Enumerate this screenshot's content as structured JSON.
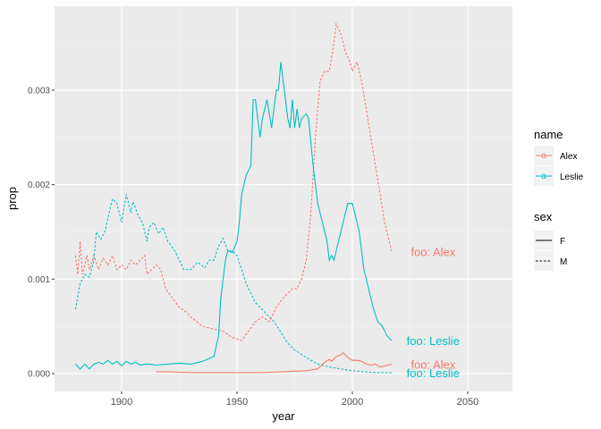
{
  "chart_data": {
    "type": "line",
    "title": "",
    "xlabel": "year",
    "ylabel": "prop",
    "xlim": [
      1873,
      2070
    ],
    "ylim": [
      -0.00015,
      0.00393
    ],
    "x_ticks": [
      1900,
      1950,
      2000,
      2050
    ],
    "x_tick_labels": [
      "1900",
      "1950",
      "2000",
      "2050"
    ],
    "y_ticks": [
      0.0,
      0.001,
      0.002,
      0.003
    ],
    "y_tick_labels": [
      "0.000",
      "0.001",
      "0.002",
      "0.003"
    ],
    "grid": true,
    "legend_position": "right",
    "legends": [
      {
        "title": "name",
        "entries": [
          {
            "label": "Alex",
            "color": "#F8766D"
          },
          {
            "label": "Leslie",
            "color": "#00BFC4"
          }
        ]
      },
      {
        "title": "sex",
        "entries": [
          {
            "label": "F",
            "linetype": "solid"
          },
          {
            "label": "M",
            "linetype": "dashed"
          }
        ]
      }
    ],
    "series": [
      {
        "name": "Leslie",
        "sex": "M",
        "color": "#00BFC4",
        "linetype": "dashed",
        "x": [
          1880,
          1882,
          1884,
          1886,
          1888,
          1889,
          1891,
          1893,
          1895,
          1896,
          1898,
          1900,
          1902,
          1904,
          1905,
          1907,
          1909,
          1911,
          1912,
          1914,
          1916,
          1918,
          1920,
          1923,
          1925,
          1927,
          1930,
          1933,
          1936,
          1938,
          1940,
          1942,
          1944,
          1946,
          1948,
          1950,
          1952,
          1954,
          1956,
          1958,
          1960,
          1962,
          1964,
          1966,
          1968,
          1970,
          1972,
          1975,
          1980,
          1985,
          1990,
          1995,
          2000,
          2005,
          2010,
          2017
        ],
        "y": [
          0.00068,
          0.00095,
          0.00105,
          0.00102,
          0.0012,
          0.0015,
          0.00142,
          0.00152,
          0.00175,
          0.00185,
          0.0018,
          0.0016,
          0.0019,
          0.0017,
          0.00182,
          0.00168,
          0.0016,
          0.0014,
          0.00155,
          0.0016,
          0.00148,
          0.00155,
          0.0014,
          0.0013,
          0.0012,
          0.0011,
          0.0011,
          0.00118,
          0.00112,
          0.0012,
          0.0012,
          0.00135,
          0.00143,
          0.0013,
          0.0013,
          0.00125,
          0.0011,
          0.00095,
          0.00085,
          0.00075,
          0.0007,
          0.00065,
          0.0006,
          0.00055,
          0.00048,
          0.0004,
          0.00032,
          0.00025,
          0.00017,
          0.0001,
          7e-05,
          5e-05,
          3e-05,
          2e-05,
          1e-05,
          1e-05
        ]
      },
      {
        "name": "Alex",
        "sex": "M",
        "color": "#F8766D",
        "linetype": "dashed",
        "x": [
          1880,
          1881,
          1882,
          1883,
          1885,
          1886,
          1888,
          1890,
          1892,
          1894,
          1896,
          1898,
          1900,
          1902,
          1904,
          1906,
          1908,
          1910,
          1911,
          1913,
          1915,
          1917,
          1919,
          1922,
          1925,
          1928,
          1930,
          1935,
          1940,
          1944,
          1948,
          1952,
          1955,
          1958,
          1961,
          1964,
          1967,
          1970,
          1974,
          1976,
          1978,
          1980,
          1982,
          1984,
          1986,
          1988,
          1990,
          1992,
          1993,
          1995,
          1997,
          1999,
          2000,
          2002,
          2004,
          2006,
          2008,
          2010,
          2012,
          2014,
          2016,
          2017
        ],
        "y": [
          0.00125,
          0.00105,
          0.0014,
          0.00105,
          0.00125,
          0.0011,
          0.00125,
          0.0011,
          0.00122,
          0.00115,
          0.00125,
          0.0011,
          0.00115,
          0.0011,
          0.0012,
          0.00115,
          0.0012,
          0.00125,
          0.00105,
          0.0011,
          0.00115,
          0.0011,
          0.0009,
          0.0008,
          0.0007,
          0.00065,
          0.0006,
          0.0005,
          0.00047,
          0.00045,
          0.00038,
          0.00035,
          0.00045,
          0.00055,
          0.0006,
          0.00055,
          0.0007,
          0.0008,
          0.0009,
          0.0009,
          0.001,
          0.0012,
          0.0017,
          0.0025,
          0.0031,
          0.0032,
          0.0032,
          0.0035,
          0.0037,
          0.0036,
          0.0034,
          0.0033,
          0.0032,
          0.0033,
          0.0031,
          0.0028,
          0.0025,
          0.0022,
          0.0019,
          0.0016,
          0.0014,
          0.0013
        ]
      },
      {
        "name": "Leslie",
        "sex": "F",
        "color": "#00BFC4",
        "linetype": "solid",
        "x": [
          1880,
          1882,
          1884,
          1886,
          1888,
          1890,
          1892,
          1894,
          1896,
          1898,
          1900,
          1902,
          1904,
          1906,
          1908,
          1910,
          1912,
          1915,
          1920,
          1925,
          1930,
          1935,
          1938,
          1940,
          1942,
          1943,
          1945,
          1946,
          1948,
          1950,
          1951,
          1952,
          1954,
          1956,
          1957,
          1958,
          1960,
          1961,
          1963,
          1965,
          1967,
          1968,
          1969,
          1970,
          1972,
          1973,
          1974,
          1975,
          1976,
          1977,
          1978,
          1980,
          1981,
          1983,
          1985,
          1987,
          1989,
          1990,
          1991,
          1992,
          1994,
          1996,
          1998,
          2000,
          2001,
          2003,
          2005,
          2007,
          2009,
          2011,
          2013,
          2015,
          2017
        ],
        "y": [
          0.0001,
          5e-05,
          0.0001,
          5e-05,
          0.0001,
          0.00012,
          0.0001,
          0.00014,
          0.0001,
          0.00013,
          8e-05,
          0.00013,
          0.0001,
          0.00012,
          9e-05,
          0.0001,
          0.0001,
          9e-05,
          0.0001,
          0.00011,
          0.0001,
          0.00013,
          0.00016,
          0.00018,
          0.0004,
          0.0008,
          0.0012,
          0.0013,
          0.00128,
          0.0014,
          0.0016,
          0.0019,
          0.0021,
          0.0022,
          0.0029,
          0.0029,
          0.0025,
          0.0027,
          0.0029,
          0.0026,
          0.003,
          0.003,
          0.0033,
          0.0031,
          0.0027,
          0.0026,
          0.0029,
          0.0026,
          0.0028,
          0.0026,
          0.0027,
          0.00275,
          0.0027,
          0.0022,
          0.0018,
          0.0016,
          0.0014,
          0.0012,
          0.00125,
          0.0012,
          0.0014,
          0.0016,
          0.0018,
          0.0018,
          0.0017,
          0.0015,
          0.0011,
          0.0009,
          0.0007,
          0.00055,
          0.0005,
          0.0004,
          0.00035
        ]
      },
      {
        "name": "Alex",
        "sex": "F",
        "color": "#F8766D",
        "linetype": "solid",
        "x": [
          1915,
          1920,
          1930,
          1940,
          1950,
          1960,
          1970,
          1980,
          1985,
          1988,
          1990,
          1991,
          1993,
          1995,
          1996,
          1998,
          2000,
          2002,
          2004,
          2006,
          2008,
          2010,
          2012,
          2014,
          2017
        ],
        "y": [
          2e-05,
          2e-05,
          1e-05,
          1e-05,
          1e-05,
          1e-05,
          2e-05,
          3e-05,
          5e-05,
          0.00012,
          0.00015,
          0.00013,
          0.00018,
          0.0002,
          0.00022,
          0.00017,
          0.00014,
          0.00014,
          0.00013,
          0.0001,
          9e-05,
          0.0001,
          7e-05,
          8e-05,
          0.0001
        ]
      }
    ],
    "annotations": [
      {
        "text": "foo:  Alex",
        "x": 2035,
        "y": 0.00129,
        "color": "#F8766D"
      },
      {
        "text": "foo:  Leslie",
        "x": 2035,
        "y": 0.00035,
        "color": "#00BFC4"
      },
      {
        "text": "foo:  Alex",
        "x": 2035,
        "y": 0.0001,
        "color": "#F8766D"
      },
      {
        "text": "foo:  Leslie",
        "x": 2035,
        "y": 1e-05,
        "color": "#00BFC4"
      }
    ]
  }
}
